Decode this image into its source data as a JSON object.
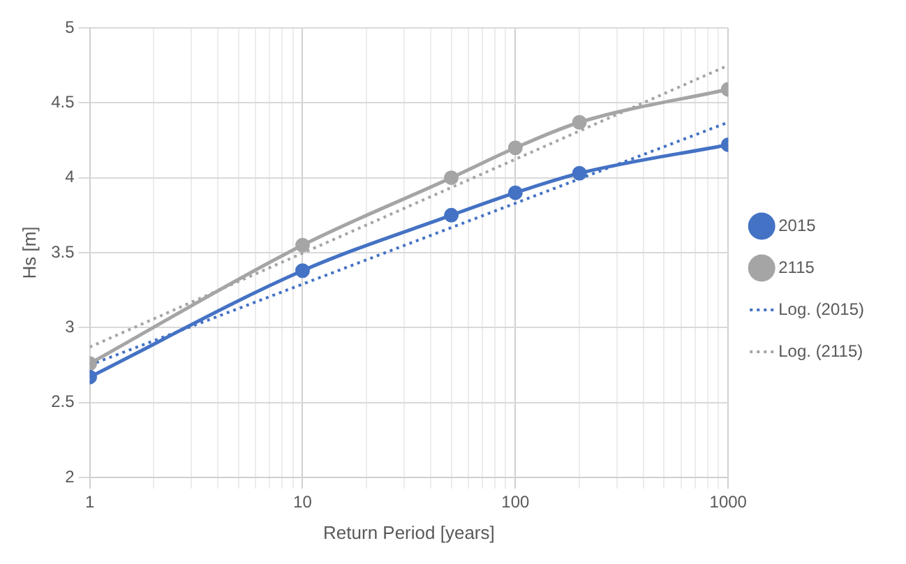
{
  "chart_data": {
    "type": "line",
    "xlabel": "Return Period [years]",
    "ylabel": "Hs [m]",
    "log": "x",
    "grid": true,
    "legend": "right",
    "xlim": [
      1,
      1000
    ],
    "xticks": [
      1,
      {
        "value": 2,
        "label": null
      },
      {
        "value": 3,
        "label": null
      },
      {
        "value": 4,
        "label": null
      },
      {
        "value": 5,
        "label": null
      },
      {
        "value": 6,
        "label": null
      },
      {
        "value": 7,
        "label": null
      },
      {
        "value": 8,
        "label": null
      },
      {
        "value": 9,
        "label": null
      },
      10,
      {
        "value": 20,
        "label": null
      },
      {
        "value": 30,
        "label": null
      },
      {
        "value": 40,
        "label": null
      },
      {
        "value": 50,
        "label": null
      },
      {
        "value": 60,
        "label": null
      },
      {
        "value": 70,
        "label": null
      },
      {
        "value": 80,
        "label": null
      },
      {
        "value": 90,
        "label": null
      },
      100,
      {
        "value": 200,
        "label": null
      },
      {
        "value": 300,
        "label": null
      },
      {
        "value": 400,
        "label": null
      },
      {
        "value": 500,
        "label": null
      },
      {
        "value": 600,
        "label": null
      },
      {
        "value": 700,
        "label": null
      },
      {
        "value": 800,
        "label": null
      },
      {
        "value": 900,
        "label": null
      },
      1000
    ],
    "ylim": [
      2,
      5
    ],
    "yticks": [
      2,
      2.5,
      3,
      3.5,
      4,
      4.5,
      5
    ],
    "series": [
      {
        "name": "2015",
        "color": "#4472c4",
        "x": [
          1,
          10,
          50,
          100,
          200,
          1000
        ],
        "values": [
          2.67,
          3.38,
          3.75,
          3.9,
          4.03,
          4.22
        ],
        "marker": "circle",
        "line_style": "solid"
      },
      {
        "name": "2115",
        "color": "#a5a5a5",
        "x": [
          1,
          10,
          50,
          100,
          200,
          1000
        ],
        "values": [
          2.76,
          3.55,
          4.0,
          4.2,
          4.37,
          4.59
        ],
        "marker": "circle",
        "line_style": "solid"
      },
      {
        "name": "Log. (2015)",
        "color": "#4472c4",
        "x": [
          1,
          1000
        ],
        "values": [
          2.75,
          4.37
        ],
        "marker": "none",
        "line_style": "dotted"
      },
      {
        "name": "Log. (2115)",
        "color": "#a5a5a5",
        "x": [
          1,
          1000
        ],
        "values": [
          2.87,
          4.75
        ],
        "marker": "none",
        "line_style": "dotted"
      }
    ]
  }
}
